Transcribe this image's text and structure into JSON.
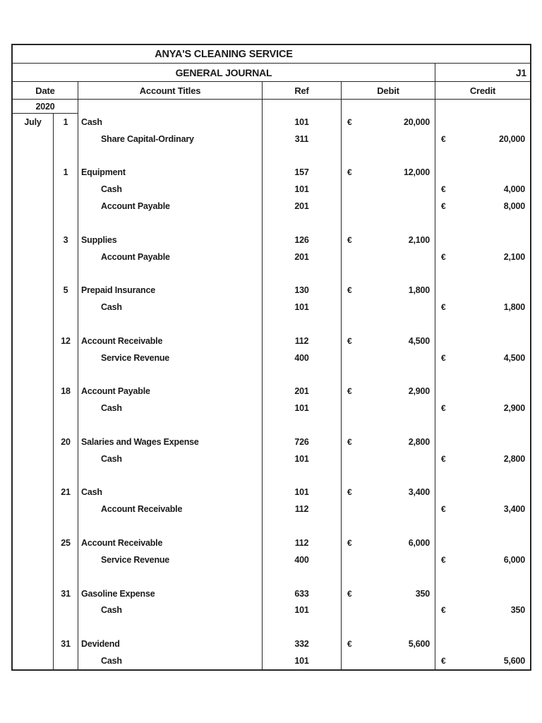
{
  "colors": {
    "page_background": "#ffffff",
    "border": "#262626",
    "text": "#1a1a1a"
  },
  "journal": {
    "title": "ANYA'S CLEANING SERVICE",
    "subtitle": "GENERAL JOURNAL",
    "page_ref": "J1",
    "columns": {
      "date": "Date",
      "account": "Account Titles",
      "ref": "Ref",
      "debit": "Debit",
      "credit": "Credit"
    },
    "year": "2020",
    "month": "July",
    "currency_symbol": "€",
    "entries": [
      {
        "day": "1",
        "lines": [
          {
            "account": "Cash",
            "ref": "101",
            "debit": "20,000"
          },
          {
            "account": "Share Capital-Ordinary",
            "ref": "311",
            "credit": "20,000",
            "indent": true
          }
        ]
      },
      {
        "day": "1",
        "lines": [
          {
            "account": "Equipment",
            "ref": "157",
            "debit": "12,000"
          },
          {
            "account": "Cash",
            "ref": "101",
            "credit": "4,000",
            "indent": true
          },
          {
            "account": "Account Payable",
            "ref": "201",
            "credit": "8,000",
            "indent": true
          }
        ]
      },
      {
        "day": "3",
        "lines": [
          {
            "account": "Supplies",
            "ref": "126",
            "debit": "2,100"
          },
          {
            "account": "Account Payable",
            "ref": "201",
            "credit": "2,100",
            "indent": true
          }
        ]
      },
      {
        "day": "5",
        "lines": [
          {
            "account": "Prepaid Insurance",
            "ref": "130",
            "debit": "1,800"
          },
          {
            "account": "Cash",
            "ref": "101",
            "credit": "1,800",
            "indent": true
          }
        ]
      },
      {
        "day": "12",
        "lines": [
          {
            "account": "Account Receivable",
            "ref": "112",
            "debit": "4,500"
          },
          {
            "account": "Service Revenue",
            "ref": "400",
            "credit": "4,500",
            "indent": true
          }
        ]
      },
      {
        "day": "18",
        "lines": [
          {
            "account": "Account Payable",
            "ref": "201",
            "debit": "2,900"
          },
          {
            "account": "Cash",
            "ref": "101",
            "credit": "2,900",
            "indent": true
          }
        ]
      },
      {
        "day": "20",
        "lines": [
          {
            "account": "Salaries and Wages Expense",
            "ref": "726",
            "debit": "2,800"
          },
          {
            "account": "Cash",
            "ref": "101",
            "credit": "2,800",
            "indent": true
          }
        ]
      },
      {
        "day": "21",
        "lines": [
          {
            "account": "Cash",
            "ref": "101",
            "debit": "3,400"
          },
          {
            "account": "Account Receivable",
            "ref": "112",
            "credit": "3,400",
            "indent": true
          }
        ]
      },
      {
        "day": "25",
        "lines": [
          {
            "account": "Account Receivable",
            "ref": "112",
            "debit": "6,000"
          },
          {
            "account": "Service Revenue",
            "ref": "400",
            "credit": "6,000",
            "indent": true
          }
        ]
      },
      {
        "day": "31",
        "lines": [
          {
            "account": "Gasoline Expense",
            "ref": "633",
            "debit": "350"
          },
          {
            "account": "Cash",
            "ref": "101",
            "credit": "350",
            "indent": true
          }
        ]
      },
      {
        "day": "31",
        "lines": [
          {
            "account": "Devidend",
            "ref": "332",
            "debit": "5,600"
          },
          {
            "account": "Cash",
            "ref": "101",
            "credit": "5,600",
            "indent": true
          }
        ]
      }
    ]
  }
}
